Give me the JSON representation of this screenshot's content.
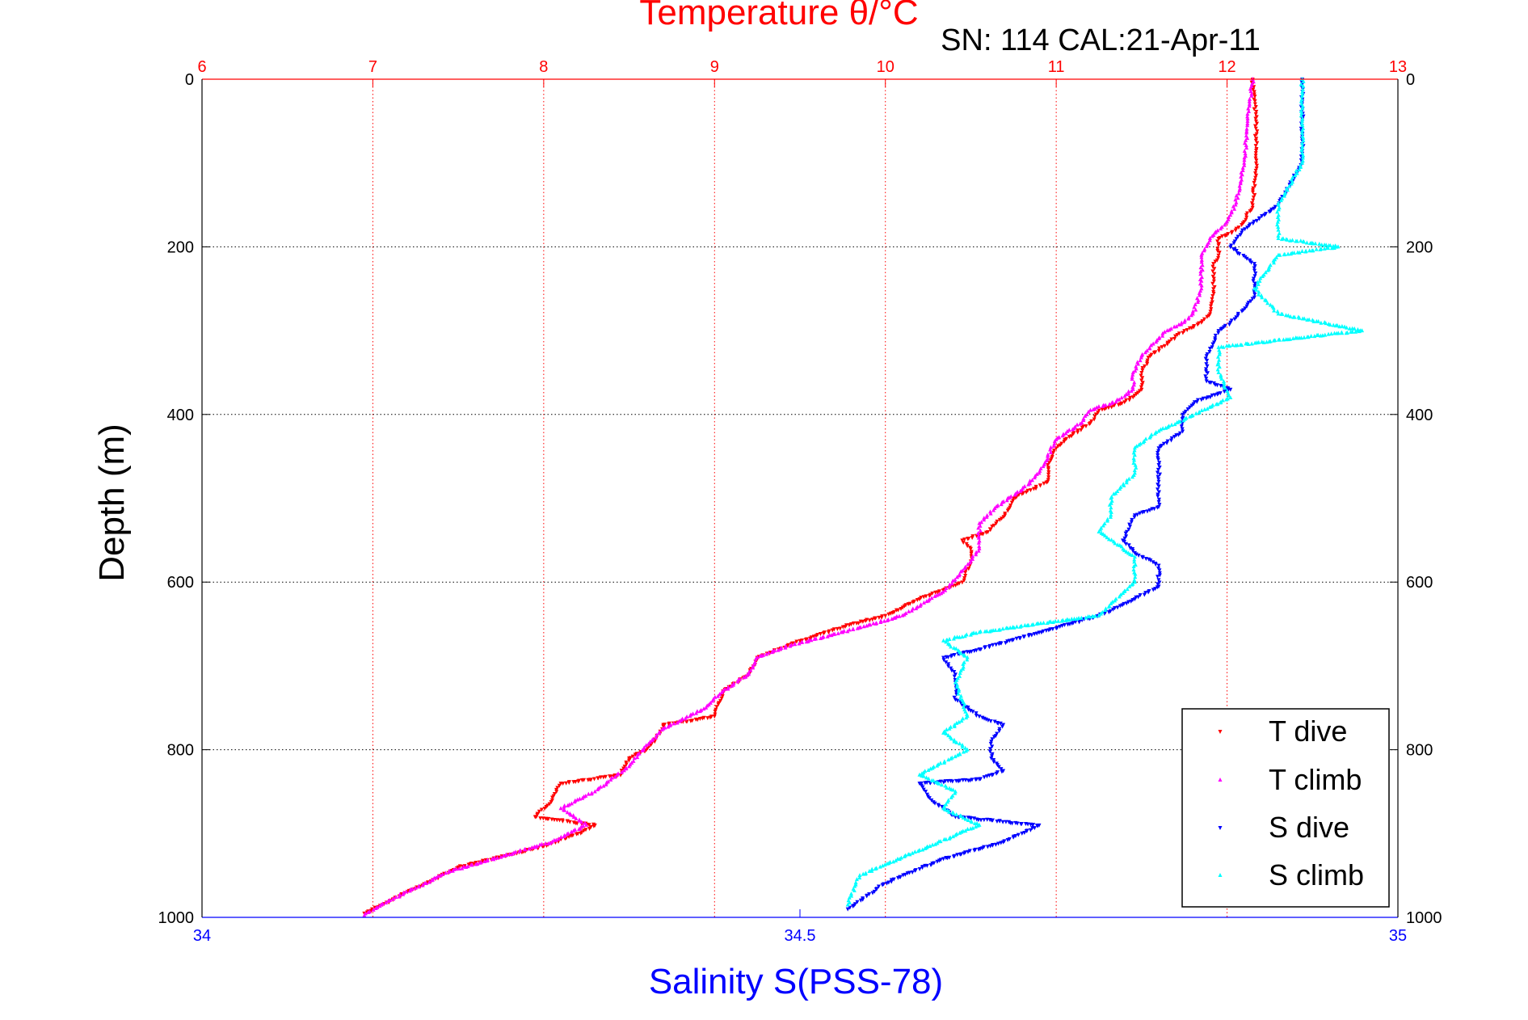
{
  "chart_data": {
    "type": "scatter",
    "title": "Temperature θ/°C",
    "subtitle": "SN: 114  CAL:21-Apr-11",
    "xlabel_top": "Temperature θ/°C",
    "xlabel_bottom": "Salinity S(PSS-78)",
    "ylabel": "Depth (m)",
    "temperature_axis": {
      "lim": [
        6,
        13
      ],
      "ticks": [
        "6",
        "7",
        "8",
        "9",
        "10",
        "11",
        "12",
        "13"
      ]
    },
    "salinity_axis": {
      "lim": [
        34,
        35
      ],
      "ticks": [
        "34",
        "34.5",
        "35"
      ]
    },
    "depth_axis": {
      "lim": [
        0,
        1000
      ],
      "reversed": true,
      "ticks": [
        "0",
        "200",
        "400",
        "600",
        "800",
        "1000"
      ]
    },
    "grid": "on",
    "legend_placement": "bottom-right",
    "colors": {
      "temperature_axis": "#ff0000",
      "salinity_axis": "#0000ff",
      "t_dive": "#ff0000",
      "t_climb": "#ff00ff",
      "s_dive": "#0000ff",
      "s_climb": "#00ffff"
    },
    "series": [
      {
        "name": "T dive",
        "axis": "temperature",
        "points": [
          [
            12.15,
            0
          ],
          [
            12.17,
            50
          ],
          [
            12.17,
            100
          ],
          [
            12.15,
            150
          ],
          [
            12.1,
            170
          ],
          [
            12.05,
            180
          ],
          [
            11.95,
            190
          ],
          [
            11.95,
            210
          ],
          [
            11.92,
            220
          ],
          [
            11.92,
            250
          ],
          [
            11.9,
            280
          ],
          [
            11.85,
            290
          ],
          [
            11.75,
            300
          ],
          [
            11.55,
            330
          ],
          [
            11.5,
            350
          ],
          [
            11.5,
            370
          ],
          [
            11.4,
            385
          ],
          [
            11.25,
            395
          ],
          [
            11.2,
            410
          ],
          [
            11.05,
            430
          ],
          [
            11.0,
            440
          ],
          [
            10.95,
            460
          ],
          [
            10.95,
            480
          ],
          [
            10.85,
            490
          ],
          [
            10.75,
            500
          ],
          [
            10.7,
            520
          ],
          [
            10.6,
            540
          ],
          [
            10.45,
            550
          ],
          [
            10.5,
            560
          ],
          [
            10.5,
            575
          ],
          [
            10.45,
            600
          ],
          [
            10.2,
            620
          ],
          [
            10.0,
            640
          ],
          [
            9.8,
            650
          ],
          [
            9.5,
            670
          ],
          [
            9.25,
            690
          ],
          [
            9.2,
            710
          ],
          [
            9.05,
            730
          ],
          [
            9.0,
            760
          ],
          [
            8.7,
            770
          ],
          [
            8.65,
            790
          ],
          [
            8.6,
            800
          ],
          [
            8.5,
            810
          ],
          [
            8.45,
            830
          ],
          [
            8.1,
            840
          ],
          [
            8.05,
            860
          ],
          [
            7.95,
            880
          ],
          [
            8.3,
            890
          ],
          [
            8.2,
            900
          ],
          [
            8.0,
            915
          ],
          [
            7.8,
            925
          ],
          [
            7.5,
            940
          ],
          [
            7.3,
            960
          ],
          [
            7.1,
            980
          ],
          [
            6.95,
            995
          ]
        ]
      },
      {
        "name": "T climb",
        "axis": "temperature",
        "points": [
          [
            12.15,
            0
          ],
          [
            12.12,
            50
          ],
          [
            12.1,
            100
          ],
          [
            12.05,
            150
          ],
          [
            12.0,
            170
          ],
          [
            11.9,
            190
          ],
          [
            11.85,
            210
          ],
          [
            11.85,
            250
          ],
          [
            11.8,
            280
          ],
          [
            11.75,
            290
          ],
          [
            11.65,
            300
          ],
          [
            11.5,
            330
          ],
          [
            11.45,
            350
          ],
          [
            11.45,
            370
          ],
          [
            11.35,
            385
          ],
          [
            11.2,
            395
          ],
          [
            11.15,
            410
          ],
          [
            11.0,
            430
          ],
          [
            10.95,
            450
          ],
          [
            10.9,
            470
          ],
          [
            10.8,
            490
          ],
          [
            10.65,
            510
          ],
          [
            10.55,
            530
          ],
          [
            10.55,
            560
          ],
          [
            10.5,
            575
          ],
          [
            10.35,
            610
          ],
          [
            10.1,
            640
          ],
          [
            9.75,
            660
          ],
          [
            9.45,
            675
          ],
          [
            9.25,
            690
          ],
          [
            9.2,
            710
          ],
          [
            9.05,
            730
          ],
          [
            8.95,
            750
          ],
          [
            8.7,
            775
          ],
          [
            8.6,
            795
          ],
          [
            8.5,
            820
          ],
          [
            8.3,
            850
          ],
          [
            8.1,
            870
          ],
          [
            8.25,
            890
          ],
          [
            8.05,
            910
          ],
          [
            7.8,
            925
          ],
          [
            7.45,
            945
          ],
          [
            7.25,
            965
          ],
          [
            7.05,
            985
          ],
          [
            6.95,
            998
          ]
        ]
      },
      {
        "name": "S dive",
        "axis": "salinity",
        "points": [
          [
            34.92,
            0
          ],
          [
            34.92,
            50
          ],
          [
            34.92,
            100
          ],
          [
            34.9,
            150
          ],
          [
            34.87,
            180
          ],
          [
            34.86,
            200
          ],
          [
            34.88,
            220
          ],
          [
            34.88,
            260
          ],
          [
            34.86,
            290
          ],
          [
            34.85,
            300
          ],
          [
            34.84,
            330
          ],
          [
            34.84,
            360
          ],
          [
            34.86,
            370
          ],
          [
            34.83,
            385
          ],
          [
            34.82,
            400
          ],
          [
            34.82,
            420
          ],
          [
            34.8,
            440
          ],
          [
            34.8,
            460
          ],
          [
            34.8,
            480
          ],
          [
            34.8,
            510
          ],
          [
            34.78,
            520
          ],
          [
            34.77,
            550
          ],
          [
            34.78,
            565
          ],
          [
            34.8,
            580
          ],
          [
            34.8,
            605
          ],
          [
            34.78,
            620
          ],
          [
            34.75,
            640
          ],
          [
            34.7,
            660
          ],
          [
            34.65,
            680
          ],
          [
            34.62,
            690
          ],
          [
            34.63,
            710
          ],
          [
            34.63,
            740
          ],
          [
            34.65,
            760
          ],
          [
            34.67,
            770
          ],
          [
            34.66,
            790
          ],
          [
            34.66,
            810
          ],
          [
            34.67,
            825
          ],
          [
            34.65,
            835
          ],
          [
            34.6,
            840
          ],
          [
            34.61,
            860
          ],
          [
            34.63,
            880
          ],
          [
            34.7,
            890
          ],
          [
            34.67,
            910
          ],
          [
            34.62,
            930
          ],
          [
            34.57,
            960
          ],
          [
            34.54,
            990
          ]
        ]
      },
      {
        "name": "S climb",
        "axis": "salinity",
        "points": [
          [
            34.92,
            0
          ],
          [
            34.92,
            50
          ],
          [
            34.92,
            100
          ],
          [
            34.9,
            150
          ],
          [
            34.9,
            180
          ],
          [
            34.9,
            190
          ],
          [
            34.95,
            200
          ],
          [
            34.9,
            210
          ],
          [
            34.88,
            250
          ],
          [
            34.9,
            280
          ],
          [
            34.97,
            300
          ],
          [
            34.85,
            320
          ],
          [
            34.85,
            350
          ],
          [
            34.86,
            380
          ],
          [
            34.8,
            420
          ],
          [
            34.78,
            440
          ],
          [
            34.78,
            470
          ],
          [
            34.76,
            500
          ],
          [
            34.76,
            520
          ],
          [
            34.75,
            540
          ],
          [
            34.78,
            570
          ],
          [
            34.78,
            600
          ],
          [
            34.75,
            640
          ],
          [
            34.65,
            660
          ],
          [
            34.62,
            670
          ],
          [
            34.64,
            690
          ],
          [
            34.63,
            720
          ],
          [
            34.64,
            760
          ],
          [
            34.62,
            780
          ],
          [
            34.64,
            800
          ],
          [
            34.6,
            830
          ],
          [
            34.63,
            850
          ],
          [
            34.62,
            870
          ],
          [
            34.65,
            890
          ],
          [
            34.6,
            920
          ],
          [
            34.55,
            950
          ],
          [
            34.54,
            985
          ]
        ]
      }
    ]
  }
}
